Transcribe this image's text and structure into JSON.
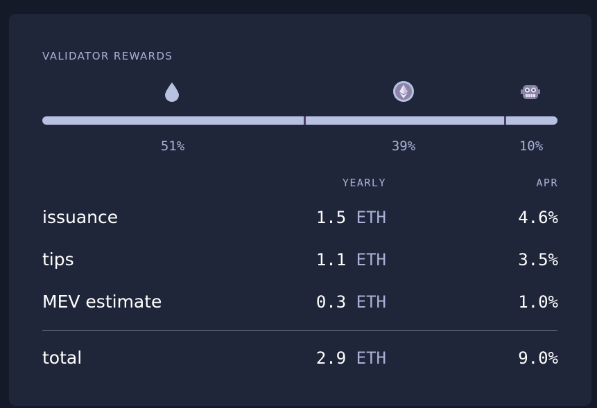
{
  "card": {
    "title": "VALIDATOR REWARDS"
  },
  "icons": [
    "water-drop-icon",
    "ethereum-icon",
    "robot-icon"
  ],
  "distribution": [
    {
      "name": "issuance",
      "percent": 51,
      "label": "51%"
    },
    {
      "name": "tips",
      "percent": 39,
      "label": "39%"
    },
    {
      "name": "mev",
      "percent": 10,
      "label": "10%"
    }
  ],
  "columns": {
    "yearly": "YEARLY",
    "apr": "APR"
  },
  "rows": [
    {
      "label": "issuance",
      "value": "1.5",
      "unit": "ETH",
      "apr": "4.6%"
    },
    {
      "label": "tips",
      "value": "1.1",
      "unit": "ETH",
      "apr": "3.5%"
    },
    {
      "label": "MEV estimate",
      "value": "0.3",
      "unit": "ETH",
      "apr": "1.0%"
    }
  ],
  "total": {
    "label": "total",
    "value": "2.9",
    "unit": "ETH",
    "apr": "9.0%"
  },
  "colors": {
    "page_bg": "#141a28",
    "card_bg": "#1f2639",
    "bar": "#b8c1e2",
    "muted_text": "#a8b2d6",
    "separator": "#4a3f63"
  }
}
